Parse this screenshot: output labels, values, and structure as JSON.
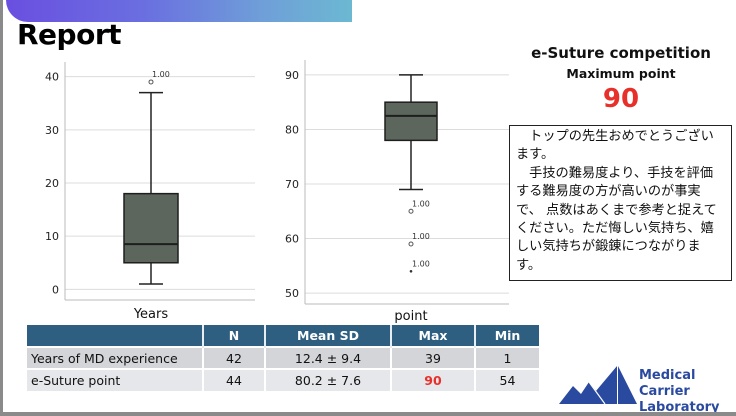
{
  "slide": {
    "title": "Report"
  },
  "right_panel": {
    "title": "e-Suture competition",
    "subtitle": "Maximum point",
    "max_value": "90",
    "message": "　トップの先生おめでとうございます。\n　手技の難易度より、手技を評価する難易度の方が高いのが事実で、 点数はあくまで参考と捉えてください。ただ悔しい気持ち、嬉しい気持ちが鍛錬につながります。"
  },
  "table": {
    "headers": [
      "",
      "N",
      "Mean SD",
      "Max",
      "Min"
    ],
    "rows": [
      {
        "label": "Years of MD experience",
        "n": "42",
        "mean_sd": "12.4 ± 9.4",
        "max": "39",
        "min": "1"
      },
      {
        "label": "e-Suture point",
        "n": "44",
        "mean_sd": "80.2 ± 7.6",
        "max": "90",
        "min": "54"
      }
    ]
  },
  "logo": {
    "line1": "Medical Carrier",
    "line2": "Laboratory",
    "color": "#2a4aa0"
  },
  "colors": {
    "box_fill": "#5c665d",
    "accent_red": "#e8302a",
    "table_header": "#2e5f80"
  },
  "chart_data": [
    {
      "type": "box",
      "xlabel": "Years",
      "ylabel": "",
      "yticks": [
        0,
        10,
        20,
        30,
        40
      ],
      "ylim": [
        -2,
        42
      ],
      "grid": true,
      "box": {
        "whisker_low": 1,
        "q1": 5,
        "median": 8.5,
        "q3": 18,
        "whisker_high": 37
      },
      "outliers": [
        {
          "value": 39,
          "label": "1.00",
          "marker": "circle"
        }
      ]
    },
    {
      "type": "box",
      "xlabel": "point",
      "ylabel": "",
      "yticks": [
        50,
        60,
        70,
        80,
        90
      ],
      "ylim": [
        48,
        92
      ],
      "grid": true,
      "box": {
        "whisker_low": 69,
        "q1": 78,
        "median": 82.5,
        "q3": 85,
        "whisker_high": 90
      },
      "outliers": [
        {
          "value": 65,
          "label": "1.00",
          "marker": "circle"
        },
        {
          "value": 59,
          "label": "1.00",
          "marker": "circle"
        },
        {
          "value": 54,
          "label": "1.00",
          "marker": "star"
        }
      ]
    }
  ]
}
